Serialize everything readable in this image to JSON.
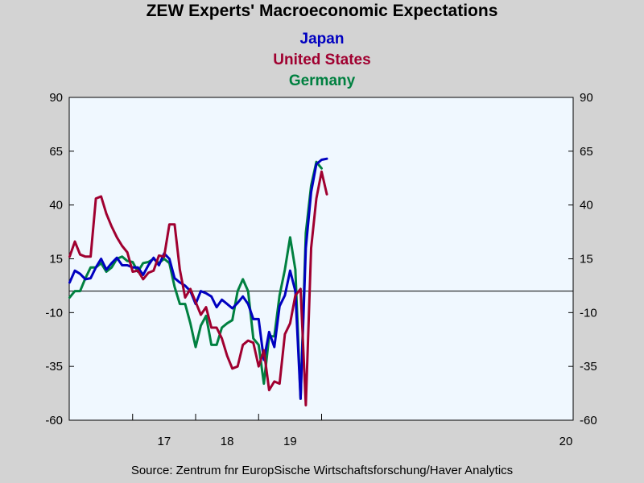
{
  "chart_data": {
    "type": "line",
    "title": "ZEW Experts' Macroeconomic Expectations",
    "ylim": [
      -60,
      90
    ],
    "yticks": [
      90,
      65,
      40,
      15,
      -10,
      -35,
      -60
    ],
    "x_tick_labels": [
      "17",
      "18",
      "19",
      "20"
    ],
    "x": [
      "2016-01",
      "2016-02",
      "2016-03",
      "2016-04",
      "2016-05",
      "2016-06",
      "2016-07",
      "2016-08",
      "2016-09",
      "2016-10",
      "2016-11",
      "2016-12",
      "2017-01",
      "2017-02",
      "2017-03",
      "2017-04",
      "2017-05",
      "2017-06",
      "2017-07",
      "2017-08",
      "2017-09",
      "2017-10",
      "2017-11",
      "2017-12",
      "2018-01",
      "2018-02",
      "2018-03",
      "2018-04",
      "2018-05",
      "2018-06",
      "2018-07",
      "2018-08",
      "2018-09",
      "2018-10",
      "2018-11",
      "2018-12",
      "2019-01",
      "2019-02",
      "2019-03",
      "2019-04",
      "2019-05",
      "2019-06",
      "2019-07",
      "2019-08",
      "2019-09",
      "2019-10",
      "2019-11",
      "2019-12",
      "2020-01",
      "2020-02",
      "2020-03",
      "2020-04",
      "2020-05",
      "2020-06",
      "2020-07",
      "2020-08"
    ],
    "zero_line": true,
    "grid": false,
    "legend_position": "top-center",
    "series": [
      {
        "name": "Japan",
        "color": "#0000c0",
        "values": [
          4,
          9.5,
          8,
          5.5,
          6,
          11,
          15,
          10,
          13,
          15.5,
          12,
          12,
          11,
          11,
          7.5,
          12,
          15.5,
          12,
          17.5,
          15,
          6,
          4,
          2.5,
          0,
          -6,
          0,
          -1,
          -2.5,
          -7.5,
          -4,
          -6,
          -8,
          -5.5,
          -2.5,
          -6,
          -13,
          -13,
          -32,
          -19,
          -26,
          -7,
          -2,
          9.5,
          0,
          -50,
          20,
          46,
          59,
          61,
          61.5,
          null,
          null,
          null,
          null,
          null,
          null
        ]
      },
      {
        "name": "United States",
        "color": "#a00030",
        "values": [
          16,
          23,
          17,
          16,
          16,
          43,
          44,
          36,
          30,
          25,
          21,
          18,
          9,
          9.5,
          5.5,
          8.5,
          9.5,
          16.5,
          16,
          31,
          31,
          10,
          -3,
          1,
          -5,
          -11,
          -7.5,
          -17,
          -17,
          -22,
          -30,
          -36,
          -35,
          -25,
          -23,
          -24,
          -35,
          -27.5,
          -46,
          -42,
          -43,
          -20,
          -15,
          -2,
          1,
          -53,
          20,
          43,
          55.5,
          45,
          null,
          null,
          null,
          null,
          null,
          null
        ]
      },
      {
        "name": "Germany",
        "color": "#008040",
        "values": [
          -3,
          0,
          0,
          6,
          11,
          11,
          13,
          9,
          11,
          15,
          16,
          14,
          13.5,
          9,
          13,
          13.5,
          15,
          13,
          15,
          13,
          2,
          -6,
          -6,
          -15,
          -26,
          -16,
          -11.5,
          -25,
          -25,
          -17,
          -15,
          -13.5,
          0,
          5.5,
          0,
          -22,
          -25,
          -43,
          -21,
          -21,
          -2,
          10,
          25,
          10,
          -50,
          27,
          49,
          60,
          57,
          null,
          null,
          null,
          null,
          null,
          null,
          null
        ]
      }
    ]
  },
  "source": "Source:  Zentrum fnr EuropSische Wirtschaftsforschung/Haver Analytics"
}
